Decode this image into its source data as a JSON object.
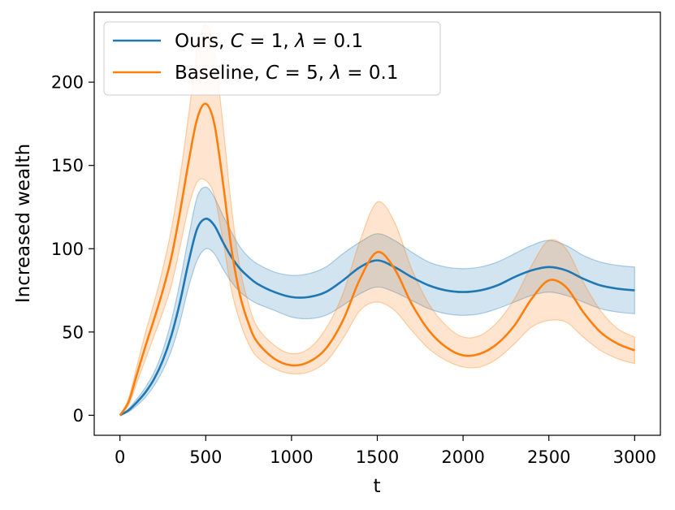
{
  "chart_data": {
    "type": "line",
    "title": "",
    "xlabel": "t",
    "ylabel": "Increased wealth",
    "xlim": [
      -150,
      3150
    ],
    "ylim": [
      -12,
      242
    ],
    "xticks": [
      0,
      500,
      1000,
      1500,
      2000,
      2500,
      3000
    ],
    "xtick_labels": [
      "0",
      "500",
      "1000",
      "1500",
      "2000",
      "2500",
      "3000"
    ],
    "yticks": [
      0,
      50,
      100,
      150,
      200
    ],
    "ytick_labels": [
      "0",
      "50",
      "100",
      "150",
      "200"
    ],
    "grid": false,
    "legend_position": "top-left",
    "series": [
      {
        "name": "Ours, C = 1, λ = 0.1",
        "legend_prefix": "Ours, ",
        "legend_c": "1",
        "legend_lambda": "0.1",
        "color": "#1f77b4",
        "x": [
          0,
          50,
          100,
          150,
          200,
          250,
          300,
          350,
          400,
          450,
          500,
          550,
          600,
          650,
          700,
          750,
          800,
          900,
          1000,
          1100,
          1200,
          1300,
          1400,
          1500,
          1600,
          1700,
          1800,
          1900,
          2000,
          2100,
          2200,
          2300,
          2400,
          2500,
          2600,
          2700,
          2800,
          2900,
          3000
        ],
        "mean": [
          0,
          3,
          8,
          14,
          22,
          33,
          48,
          68,
          92,
          112,
          118,
          114,
          104,
          95,
          88,
          83,
          79,
          74,
          71,
          71,
          74,
          81,
          89,
          93,
          89,
          83,
          78,
          75,
          74,
          75,
          78,
          83,
          87,
          89,
          87,
          82,
          78,
          76,
          75
        ],
        "upper": [
          0,
          4,
          10,
          17,
          26,
          39,
          57,
          80,
          107,
          131,
          137,
          131,
          120,
          110,
          101,
          95,
          91,
          86,
          84,
          85,
          89,
          97,
          104,
          109,
          105,
          98,
          92,
          89,
          88,
          89,
          92,
          97,
          102,
          105,
          102,
          96,
          92,
          90,
          89
        ],
        "lower": [
          0,
          2,
          6,
          11,
          18,
          27,
          39,
          56,
          77,
          93,
          100,
          97,
          88,
          80,
          74,
          70,
          67,
          63,
          59,
          58,
          60,
          66,
          73,
          77,
          74,
          69,
          64,
          61,
          60,
          61,
          64,
          68,
          72,
          74,
          72,
          68,
          64,
          62,
          61
        ]
      },
      {
        "name": "Baseline, C = 5, λ = 0.1",
        "legend_prefix": "Baseline, ",
        "legend_c": "5",
        "legend_lambda": "0.1",
        "color": "#ff7f0e",
        "x": [
          0,
          50,
          100,
          150,
          200,
          250,
          300,
          350,
          400,
          450,
          500,
          550,
          600,
          650,
          700,
          750,
          800,
          900,
          1000,
          1100,
          1200,
          1300,
          1400,
          1500,
          1600,
          1700,
          1800,
          1900,
          2000,
          2100,
          2200,
          2300,
          2400,
          2500,
          2600,
          2700,
          2800,
          2900,
          3000
        ],
        "mean": [
          0,
          8,
          25,
          42,
          58,
          75,
          95,
          122,
          152,
          178,
          187,
          175,
          140,
          100,
          72,
          55,
          44,
          34,
          30,
          32,
          40,
          57,
          82,
          98,
          88,
          67,
          51,
          41,
          36,
          37,
          43,
          54,
          70,
          81,
          77,
          62,
          50,
          43,
          39
        ],
        "upper": [
          0,
          10,
          30,
          50,
          68,
          88,
          112,
          143,
          180,
          218,
          235,
          218,
          175,
          125,
          88,
          67,
          53,
          42,
          37,
          40,
          52,
          73,
          105,
          128,
          116,
          88,
          67,
          54,
          47,
          48,
          56,
          70,
          90,
          105,
          100,
          80,
          63,
          52,
          47
        ],
        "lower": [
          0,
          6,
          20,
          34,
          48,
          62,
          78,
          101,
          125,
          140,
          141,
          132,
          105,
          75,
          56,
          43,
          35,
          28,
          25,
          26,
          32,
          46,
          63,
          68,
          63,
          51,
          40,
          33,
          29,
          29,
          34,
          43,
          53,
          57,
          56,
          47,
          39,
          34,
          31
        ]
      }
    ]
  }
}
